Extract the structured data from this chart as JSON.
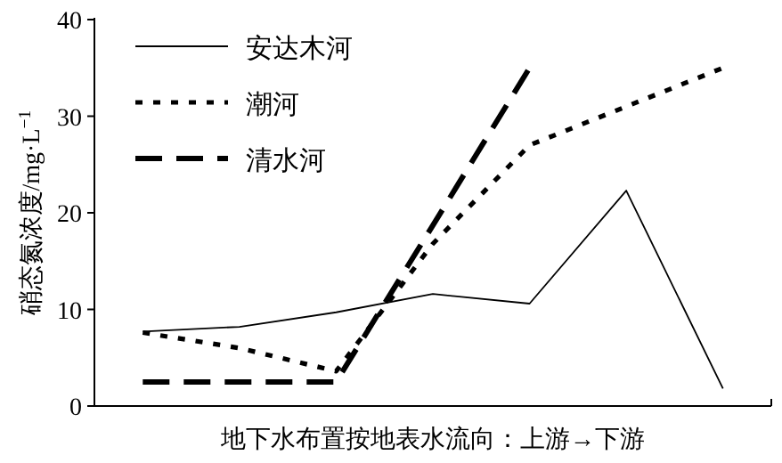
{
  "chart_data": {
    "type": "line",
    "xlabel": "地下水布置按地表水流向：上游→下游",
    "ylabel": "硝态氮浓度/mg·L$^{−1}$",
    "categories": [
      null,
      null,
      null,
      null,
      null,
      null,
      null
    ],
    "ylim": [
      0,
      40
    ],
    "yticks": [
      0,
      10,
      20,
      30,
      40
    ],
    "grid": false,
    "legend": "top left",
    "series": [
      {
        "name": "安达木河",
        "color": "#000000",
        "line_style": "solid",
        "values": [
          7.7,
          8.2,
          9.7,
          11.6,
          10.6,
          22.3,
          1.8
        ]
      },
      {
        "name": "潮河",
        "color": "#000000",
        "line_style": "dotted",
        "values": [
          7.6,
          6.0,
          3.6,
          16.8,
          27,
          31,
          35
        ]
      },
      {
        "name": "清水河",
        "color": "#000000",
        "line_style": "dashed",
        "values": [
          2.5,
          2.5,
          2.5,
          18.7,
          35,
          null,
          null
        ]
      }
    ]
  }
}
